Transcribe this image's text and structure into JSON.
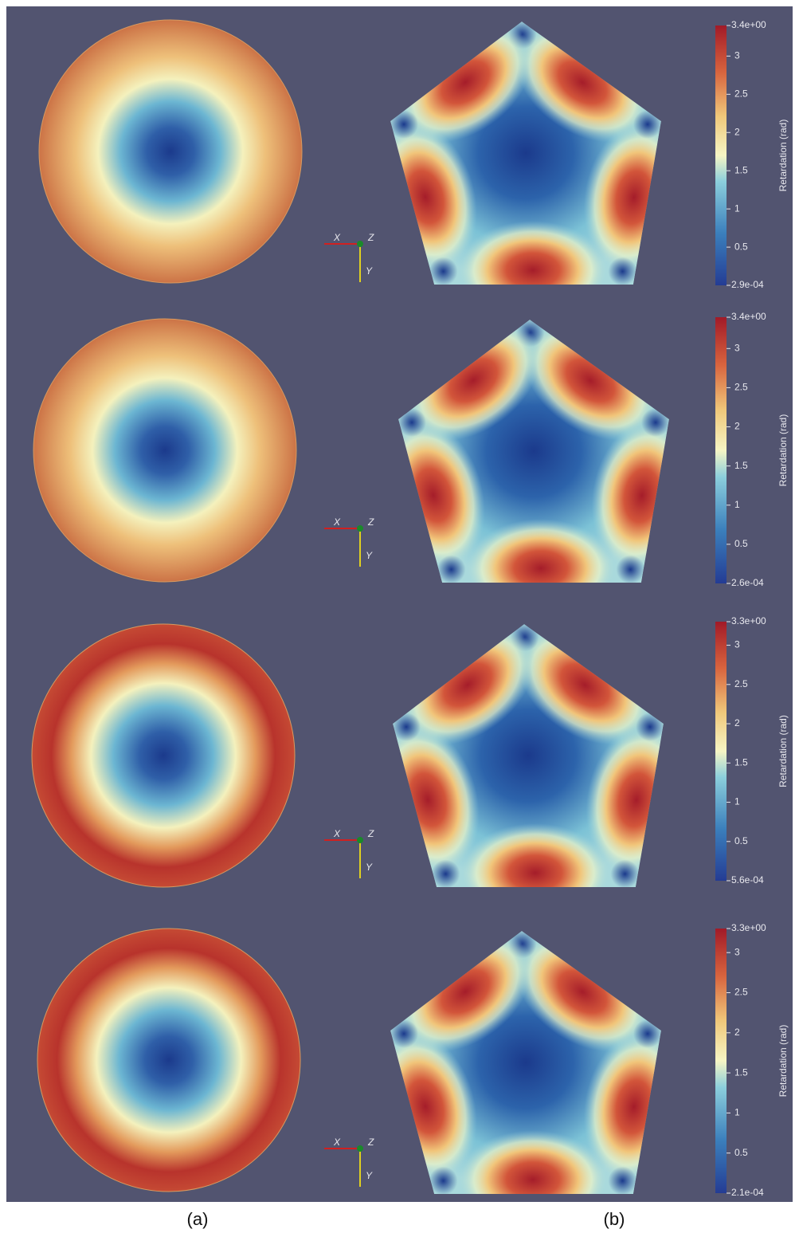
{
  "rows": [
    {
      "colorbar": {
        "title": "Retardation (rad)",
        "range": [
          {
            "value": 0.00029,
            "label": "2.9e-04"
          },
          {
            "value": 3.4,
            "label": "3.4e+00"
          }
        ],
        "ticks": [
          0.5,
          1,
          1.5,
          2,
          2.5,
          3
        ]
      },
      "axes": {
        "x": "X",
        "z": "Z",
        "y": "Y"
      }
    },
    {
      "colorbar": {
        "title": "Retardation (rad)",
        "range": [
          {
            "value": 0.00026,
            "label": "2.6e-04"
          },
          {
            "value": 3.4,
            "label": "3.4e+00"
          }
        ],
        "ticks": [
          0.5,
          1,
          1.5,
          2,
          2.5,
          3
        ]
      },
      "axes": {
        "x": "X",
        "z": "Z",
        "y": "Y"
      }
    },
    {
      "colorbar": {
        "title": "Retardation (rad)",
        "range": [
          {
            "value": 0.00056,
            "label": "5.6e-04"
          },
          {
            "value": 3.3,
            "label": "3.3e+00"
          }
        ],
        "ticks": [
          0.5,
          1,
          1.5,
          2,
          2.5,
          3
        ]
      },
      "axes": {
        "x": "X",
        "z": "Z",
        "y": "Y"
      }
    },
    {
      "colorbar": {
        "title": "Retardation (rad)",
        "range": [
          {
            "value": 0.00021,
            "label": "2.1e-04"
          },
          {
            "value": 3.3,
            "label": "3.3e+00"
          }
        ],
        "ticks": [
          0.5,
          1,
          1.5,
          2,
          2.5,
          3
        ]
      },
      "axes": {
        "x": "X",
        "z": "Z",
        "y": "Y"
      }
    }
  ],
  "captions": [
    "(a)",
    "(b)"
  ]
}
